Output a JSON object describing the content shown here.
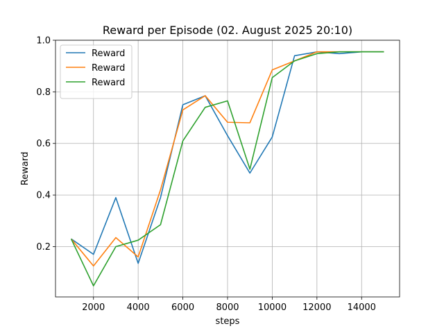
{
  "chart_data": {
    "type": "line",
    "title": "Reward per Episode (02. August 2025 20:10)",
    "xlabel": "steps",
    "ylabel": "Reward",
    "xlim": [
      300,
      15700
    ],
    "ylim": [
      0.005,
      1.0
    ],
    "xticks": [
      2000,
      4000,
      6000,
      8000,
      10000,
      12000,
      14000
    ],
    "xtick_labels": [
      "2000",
      "4000",
      "6000",
      "8000",
      "10000",
      "12000",
      "14000"
    ],
    "yticks": [
      0.2,
      0.4,
      0.6,
      0.8,
      1.0
    ],
    "ytick_labels": [
      "0.2",
      "0.4",
      "0.6",
      "0.8",
      "1.0"
    ],
    "grid": true,
    "legend_position": "top-left",
    "x": [
      1000,
      2000,
      3000,
      4000,
      5000,
      6000,
      7000,
      8000,
      9000,
      10000,
      11000,
      12000,
      13000,
      14000,
      15000
    ],
    "series": [
      {
        "name": "Reward",
        "color": "#1f77b4",
        "values": [
          0.23,
          0.17,
          0.39,
          0.135,
          0.39,
          0.75,
          0.785,
          0.63,
          0.485,
          0.625,
          0.94,
          0.955,
          0.948,
          0.955,
          0.955
        ]
      },
      {
        "name": "Reward",
        "color": "#ff7f0e",
        "values": [
          0.23,
          0.125,
          0.235,
          0.16,
          0.42,
          0.73,
          0.785,
          0.682,
          0.68,
          0.885,
          0.92,
          0.955,
          0.955,
          0.955,
          0.955
        ]
      },
      {
        "name": "Reward",
        "color": "#2ca02c",
        "values": [
          0.23,
          0.048,
          0.2,
          0.225,
          0.285,
          0.61,
          0.74,
          0.765,
          0.5,
          0.855,
          0.92,
          0.948,
          0.955,
          0.955,
          0.955
        ]
      }
    ]
  }
}
